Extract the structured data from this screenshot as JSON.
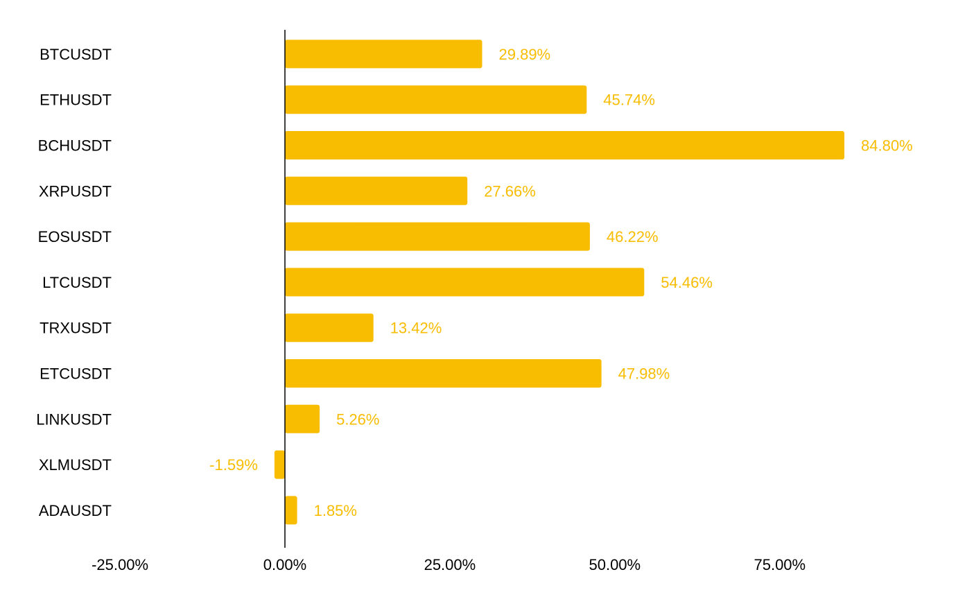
{
  "chart_data": {
    "type": "bar",
    "orientation": "horizontal",
    "title": "",
    "xlabel": "",
    "ylabel": "",
    "categories": [
      "BTCUSDT",
      "ETHUSDT",
      "BCHUSDT",
      "XRPUSDT",
      "EOSUSDT",
      "LTCUSDT",
      "TRXUSDT",
      "ETCUSDT",
      "LINKUSDT",
      "XLMUSDT",
      "ADAUSDT"
    ],
    "values": [
      29.89,
      45.74,
      84.8,
      27.66,
      46.22,
      54.46,
      13.42,
      47.98,
      5.26,
      -1.59,
      1.85
    ],
    "data_labels": [
      "29.89%",
      "45.74%",
      "84.80%",
      "27.66%",
      "46.22%",
      "54.46%",
      "13.42%",
      "47.98%",
      "5.26%",
      "-1.59%",
      "1.85%"
    ],
    "xlim": [
      -25,
      100
    ],
    "x_ticks": [
      -25,
      0,
      25,
      50,
      75
    ],
    "x_tick_labels": [
      "-25.00%",
      "0.00%",
      "25.00%",
      "50.00%",
      "75.00%"
    ],
    "grid": false,
    "legend": "none",
    "bar_color": "#f8bc00",
    "label_color": "#f8bc00",
    "axis_color": "#000000"
  }
}
